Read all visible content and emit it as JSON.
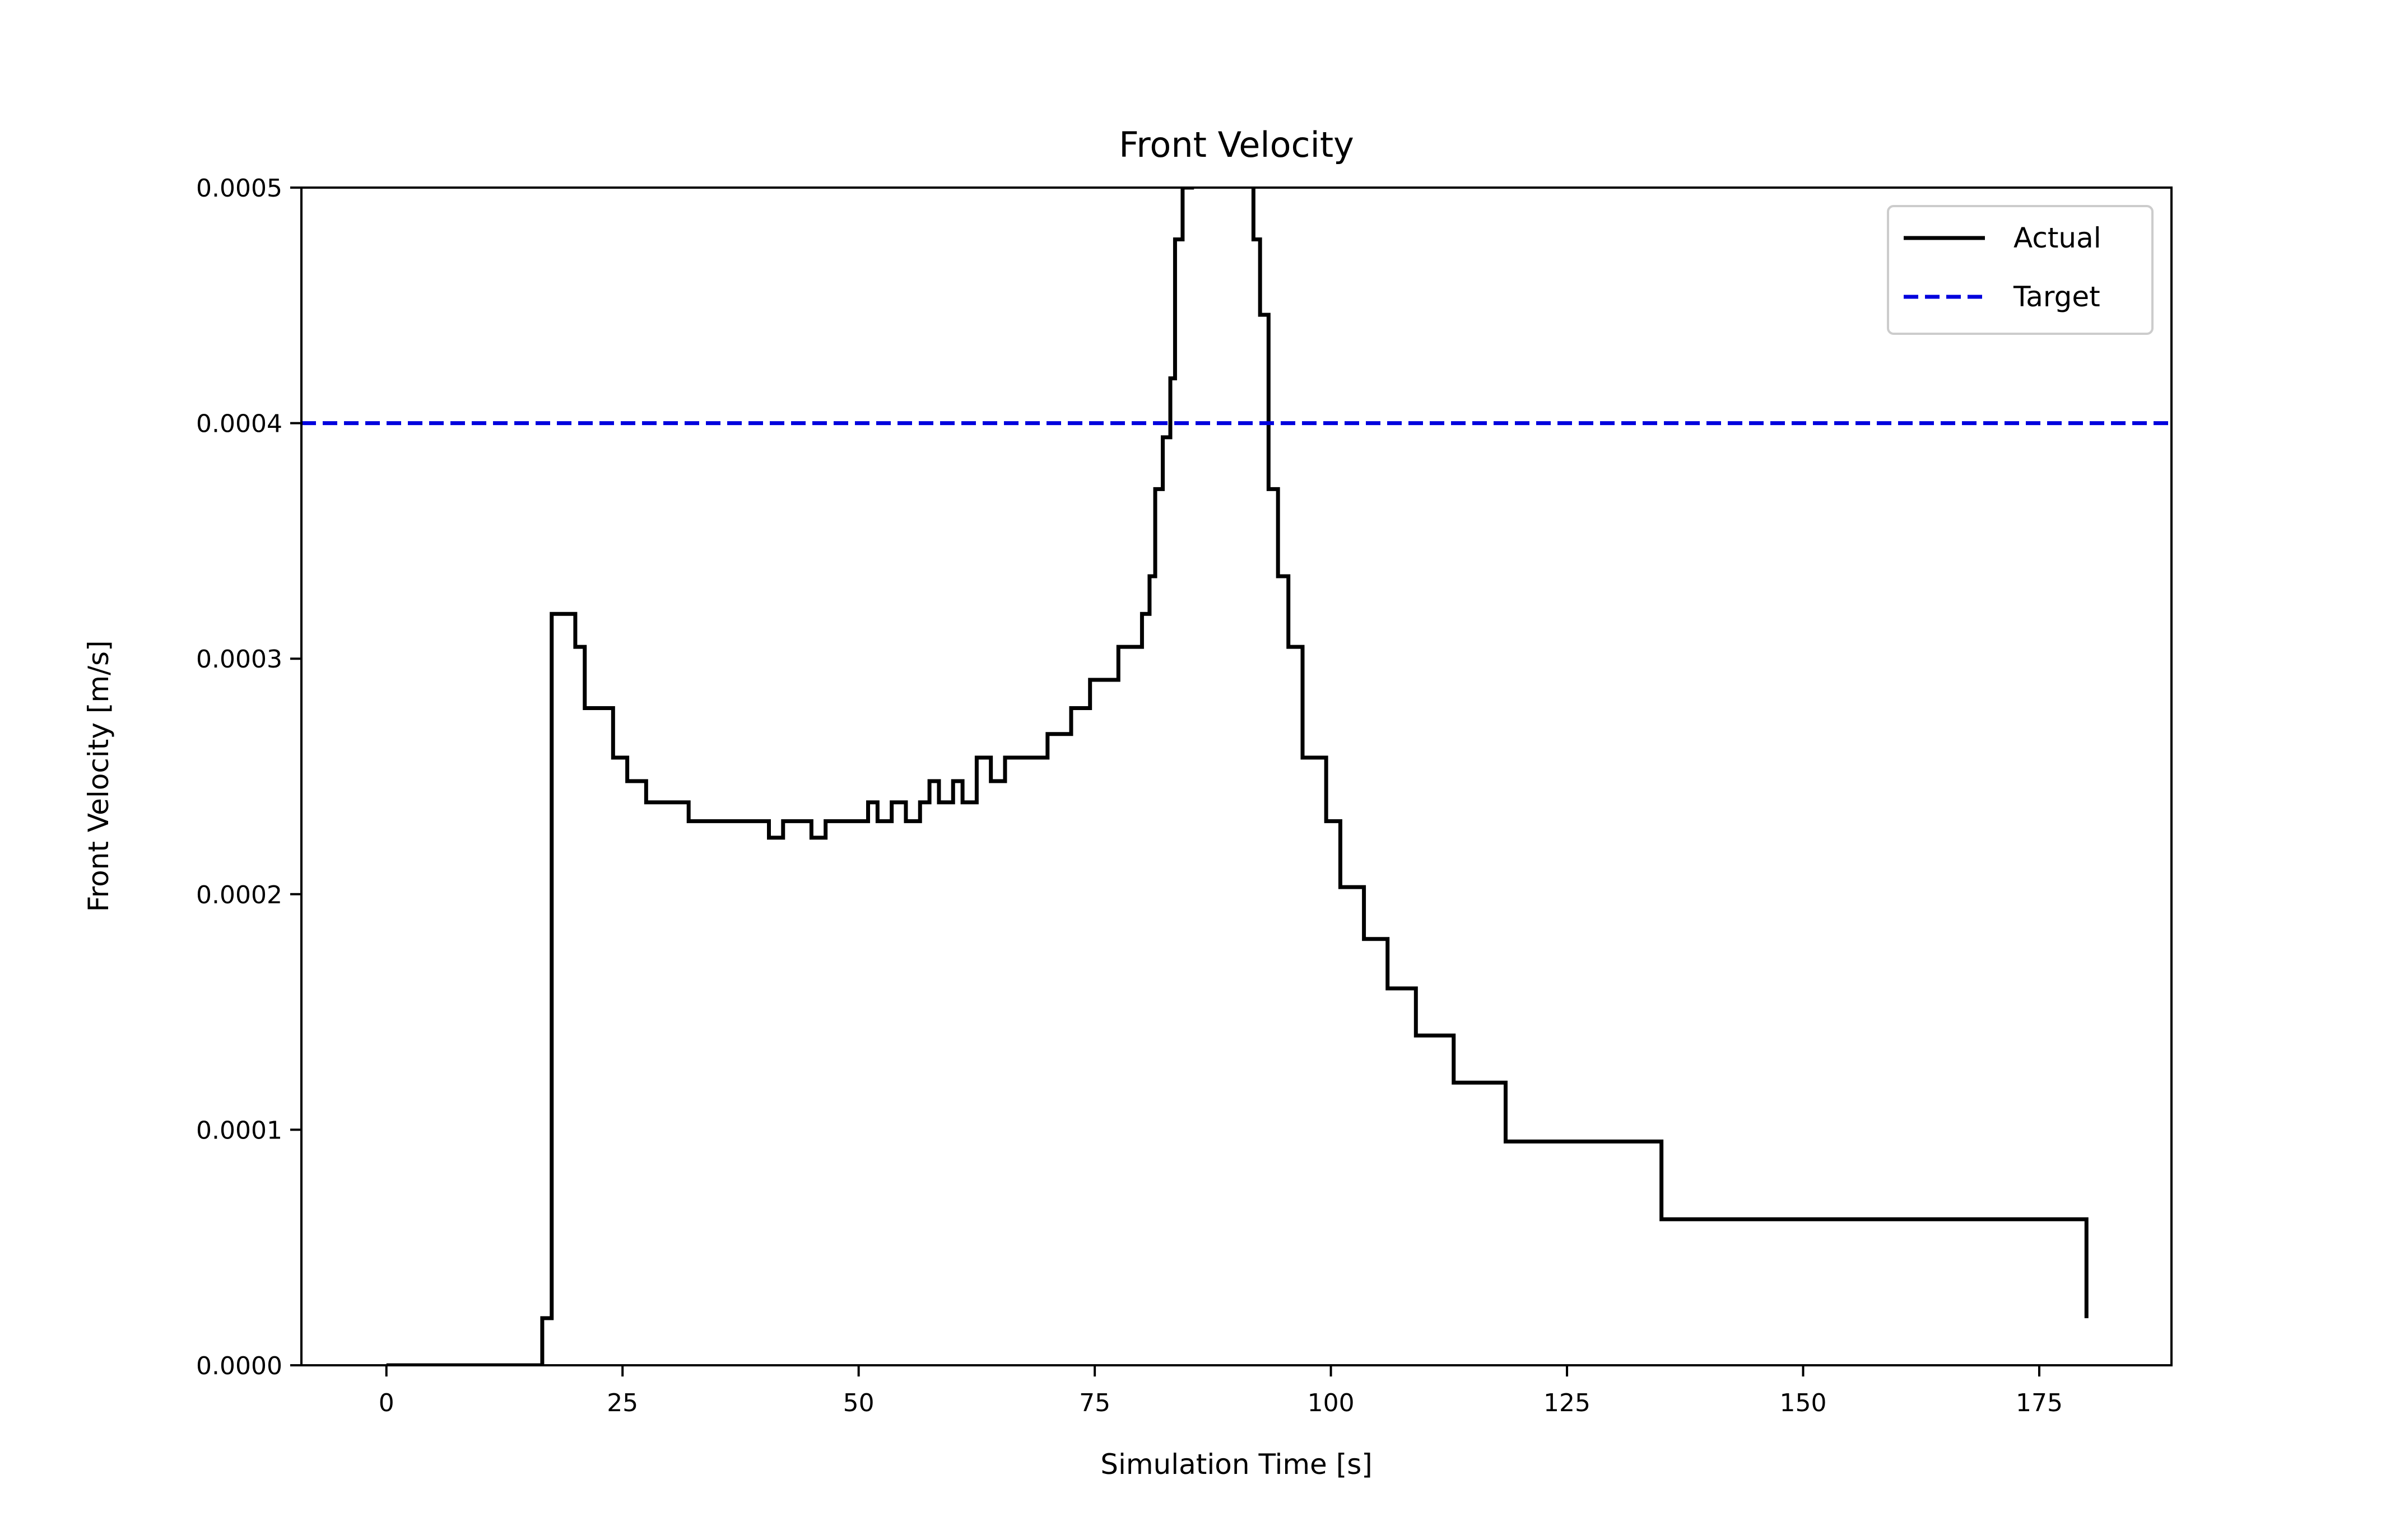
{
  "chart_data": {
    "type": "line",
    "title": "Front Velocity",
    "xlabel": "Simulation Time [s]",
    "ylabel": "Front Velocity [m/s]",
    "xlim": [
      -9,
      189
    ],
    "ylim": [
      0,
      0.0005
    ],
    "xticks": [
      0,
      25,
      50,
      75,
      100,
      125,
      150,
      175
    ],
    "xtick_labels": [
      "0",
      "25",
      "50",
      "75",
      "100",
      "125",
      "150",
      "175"
    ],
    "yticks": [
      0,
      0.0001,
      0.0002,
      0.0003,
      0.0004,
      0.0005
    ],
    "ytick_labels": [
      "0.0000",
      "0.0001",
      "0.0002",
      "0.0003",
      "0.0004",
      "0.0005"
    ],
    "grid": false,
    "legend_position": "top-right",
    "series": [
      {
        "name": "Actual",
        "color": "#000000",
        "style": "solid",
        "step": "post",
        "x": [
          0,
          16.5,
          17.5,
          18.5,
          20,
          21,
          24,
          25.5,
          27.5,
          32,
          40.5,
          42,
          45,
          46.5,
          51,
          52,
          53.5,
          55,
          56.5,
          57.5,
          58.5,
          60,
          61,
          62.5,
          64,
          65.5,
          70,
          72.5,
          74.5,
          77.5,
          80,
          80.8,
          81.4,
          82.2,
          83,
          83.5,
          84.3,
          85.3,
          91.8,
          92.5,
          93.4,
          94.4,
          95.5,
          97,
          99.5,
          101,
          103.5,
          106,
          109,
          113,
          118.5,
          135,
          180
        ],
        "y": [
          0,
          2e-05,
          0.000319,
          0.000319,
          0.000305,
          0.000279,
          0.000258,
          0.000248,
          0.000239,
          0.000231,
          0.000224,
          0.000231,
          0.000224,
          0.000231,
          0.000239,
          0.000231,
          0.000239,
          0.000231,
          0.000239,
          0.000248,
          0.000239,
          0.000248,
          0.000239,
          0.000258,
          0.000248,
          0.000258,
          0.000268,
          0.000279,
          0.000291,
          0.000305,
          0.000319,
          0.000335,
          0.000372,
          0.000394,
          0.000419,
          0.000478,
          0.0005,
          0.00055,
          0.000478,
          0.000446,
          0.000372,
          0.000335,
          0.000305,
          0.000258,
          0.000231,
          0.000203,
          0.000181,
          0.00016,
          0.00014,
          0.00012,
          9.5e-05,
          6.2e-05,
          2e-05
        ]
      },
      {
        "name": "Target",
        "color": "#0000dd",
        "style": "dashed",
        "y_constant": 0.0004
      }
    ]
  }
}
